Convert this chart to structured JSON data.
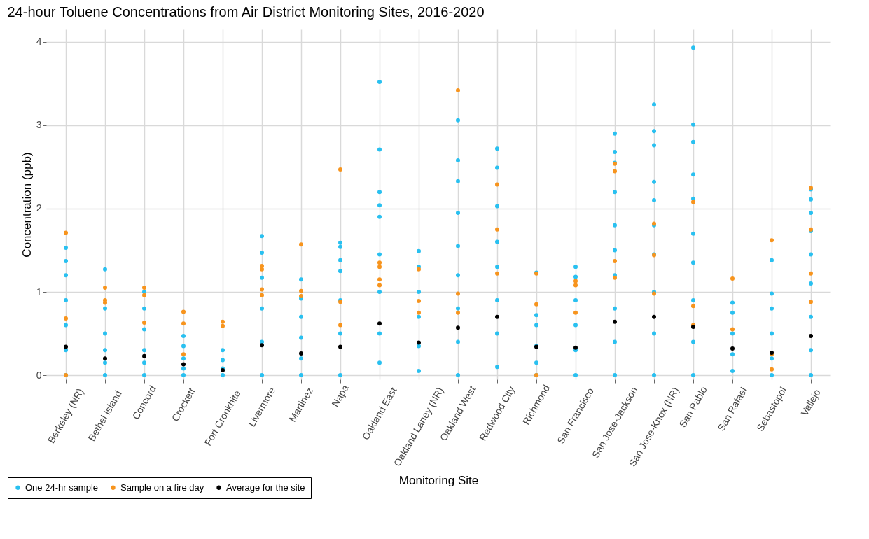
{
  "chart_data": {
    "type": "scatter",
    "title": "24-hour Toluene Concentrations from Air District Monitoring Sites, 2016-2020",
    "xlabel": "Monitoring Site",
    "ylabel": "Concentration (ppb)",
    "categories": [
      "Berkeley (NR)",
      "Bethel Island",
      "Concord",
      "Crockett",
      "Fort Cronkhite",
      "Livermore",
      "Martinez",
      "Napa",
      "Oakland East",
      "Oakland Laney (NR)",
      "Oakland West",
      "Redwood City",
      "Richmond",
      "San Francisco",
      "San Jose-Jackson",
      "San Jose-Knox (NR)",
      "San Pablo",
      "San Rafael",
      "Sebastopol",
      "Vallejo"
    ],
    "ylim": [
      -0.05,
      4.15
    ],
    "yticks": [
      0,
      1,
      2,
      3,
      4
    ],
    "grid": true,
    "legend": "bottom left",
    "marker": "circle",
    "series": [
      {
        "name": "One 24-hr sample",
        "color": "#29c0f0",
        "x": [
          "Berkeley (NR)",
          "Berkeley (NR)",
          "Berkeley (NR)",
          "Berkeley (NR)",
          "Berkeley (NR)",
          "Berkeley (NR)",
          "Berkeley (NR)",
          "Bethel Island",
          "Bethel Island",
          "Bethel Island",
          "Bethel Island",
          "Bethel Island",
          "Bethel Island",
          "Concord",
          "Concord",
          "Concord",
          "Concord",
          "Concord",
          "Concord",
          "Crockett",
          "Crockett",
          "Crockett",
          "Crockett",
          "Crockett",
          "Fort Cronkhite",
          "Fort Cronkhite",
          "Fort Cronkhite",
          "Fort Cronkhite",
          "Livermore",
          "Livermore",
          "Livermore",
          "Livermore",
          "Livermore",
          "Livermore",
          "Martinez",
          "Martinez",
          "Martinez",
          "Martinez",
          "Martinez",
          "Martinez",
          "Napa",
          "Napa",
          "Napa",
          "Napa",
          "Napa",
          "Napa",
          "Napa",
          "Oakland East",
          "Oakland East",
          "Oakland East",
          "Oakland East",
          "Oakland East",
          "Oakland East",
          "Oakland East",
          "Oakland East",
          "Oakland East",
          "Oakland Laney (NR)",
          "Oakland Laney (NR)",
          "Oakland Laney (NR)",
          "Oakland Laney (NR)",
          "Oakland Laney (NR)",
          "Oakland Laney (NR)",
          "Oakland West",
          "Oakland West",
          "Oakland West",
          "Oakland West",
          "Oakland West",
          "Oakland West",
          "Oakland West",
          "Oakland West",
          "Oakland West",
          "Redwood City",
          "Redwood City",
          "Redwood City",
          "Redwood City",
          "Redwood City",
          "Redwood City",
          "Redwood City",
          "Redwood City",
          "Richmond",
          "Richmond",
          "Richmond",
          "Richmond",
          "Richmond",
          "Richmond",
          "San Francisco",
          "San Francisco",
          "San Francisco",
          "San Francisco",
          "San Francisco",
          "San Francisco",
          "San Jose-Jackson",
          "San Jose-Jackson",
          "San Jose-Jackson",
          "San Jose-Jackson",
          "San Jose-Jackson",
          "San Jose-Jackson",
          "San Jose-Jackson",
          "San Jose-Jackson",
          "San Jose-Jackson",
          "San Jose-Jackson",
          "San Jose-Knox (NR)",
          "San Jose-Knox (NR)",
          "San Jose-Knox (NR)",
          "San Jose-Knox (NR)",
          "San Jose-Knox (NR)",
          "San Jose-Knox (NR)",
          "San Jose-Knox (NR)",
          "San Jose-Knox (NR)",
          "San Jose-Knox (NR)",
          "San Jose-Knox (NR)",
          "San Pablo",
          "San Pablo",
          "San Pablo",
          "San Pablo",
          "San Pablo",
          "San Pablo",
          "San Pablo",
          "San Pablo",
          "San Pablo",
          "San Pablo",
          "San Rafael",
          "San Rafael",
          "San Rafael",
          "San Rafael",
          "San Rafael",
          "Sebastopol",
          "Sebastopol",
          "Sebastopol",
          "Sebastopol",
          "Sebastopol",
          "Sebastopol",
          "Vallejo",
          "Vallejo",
          "Vallejo",
          "Vallejo",
          "Vallejo",
          "Vallejo",
          "Vallejo",
          "Vallejo",
          "Vallejo"
        ],
        "values": [
          1.53,
          1.37,
          1.2,
          0.9,
          0.6,
          0.3,
          0.0,
          1.27,
          0.8,
          0.5,
          0.3,
          0.15,
          0.0,
          1.0,
          0.8,
          0.55,
          0.3,
          0.15,
          0.0,
          0.47,
          0.35,
          0.2,
          0.08,
          0.0,
          0.3,
          0.18,
          0.08,
          0.0,
          1.67,
          1.47,
          1.17,
          0.8,
          0.4,
          0.0,
          1.15,
          0.92,
          0.7,
          0.45,
          0.2,
          0.0,
          1.59,
          1.54,
          1.38,
          1.25,
          0.9,
          0.5,
          0.0,
          3.52,
          2.71,
          2.2,
          2.04,
          1.9,
          1.45,
          1.0,
          0.5,
          0.15,
          1.49,
          1.3,
          1.0,
          0.7,
          0.35,
          0.05,
          3.06,
          2.58,
          2.33,
          1.95,
          1.55,
          1.2,
          0.8,
          0.4,
          0.0,
          2.72,
          2.49,
          2.03,
          1.6,
          1.3,
          0.9,
          0.5,
          0.1,
          1.23,
          0.72,
          0.6,
          0.35,
          0.15,
          0.0,
          1.3,
          1.18,
          0.9,
          0.6,
          0.3,
          0.0,
          2.9,
          2.68,
          2.55,
          2.2,
          1.8,
          1.5,
          1.2,
          0.8,
          0.4,
          0.0,
          3.25,
          2.93,
          2.76,
          2.32,
          2.1,
          1.8,
          1.45,
          1.0,
          0.5,
          0.0,
          3.93,
          3.01,
          2.8,
          2.41,
          2.12,
          1.7,
          1.35,
          0.9,
          0.4,
          0.0,
          0.87,
          0.75,
          0.5,
          0.25,
          0.05,
          1.38,
          0.98,
          0.8,
          0.5,
          0.2,
          0.0,
          2.23,
          2.11,
          1.95,
          1.73,
          1.45,
          1.1,
          0.7,
          0.3,
          0.0
        ]
      },
      {
        "name": "Sample on a fire day",
        "color": "#f7941d",
        "x": [
          "Berkeley (NR)",
          "Berkeley (NR)",
          "Berkeley (NR)",
          "Bethel Island",
          "Bethel Island",
          "Bethel Island",
          "Concord",
          "Concord",
          "Concord",
          "Crockett",
          "Crockett",
          "Crockett",
          "Fort Cronkhite",
          "Fort Cronkhite",
          "Livermore",
          "Livermore",
          "Livermore",
          "Livermore",
          "Martinez",
          "Martinez",
          "Martinez",
          "Napa",
          "Napa",
          "Napa",
          "Oakland East",
          "Oakland East",
          "Oakland East",
          "Oakland East",
          "Oakland Laney (NR)",
          "Oakland Laney (NR)",
          "Oakland Laney (NR)",
          "Oakland West",
          "Oakland West",
          "Oakland West",
          "Redwood City",
          "Redwood City",
          "Redwood City",
          "Richmond",
          "Richmond",
          "Richmond",
          "San Francisco",
          "San Francisco",
          "San Francisco",
          "San Jose-Jackson",
          "San Jose-Jackson",
          "San Jose-Jackson",
          "San Jose-Jackson",
          "San Jose-Knox (NR)",
          "San Jose-Knox (NR)",
          "San Jose-Knox (NR)",
          "San Pablo",
          "San Pablo",
          "San Pablo",
          "San Rafael",
          "San Rafael",
          "Sebastopol",
          "Sebastopol",
          "Sebastopol",
          "Vallejo",
          "Vallejo",
          "Vallejo",
          "Vallejo"
        ],
        "values": [
          1.71,
          0.68,
          0.0,
          1.05,
          0.9,
          0.87,
          1.05,
          0.96,
          0.63,
          0.76,
          0.62,
          0.25,
          0.64,
          0.59,
          1.31,
          1.27,
          1.03,
          0.96,
          1.57,
          1.01,
          0.95,
          2.47,
          0.88,
          0.6,
          1.35,
          1.3,
          1.15,
          1.08,
          1.27,
          0.89,
          0.75,
          3.42,
          0.98,
          0.75,
          2.29,
          1.75,
          1.22,
          1.22,
          0.85,
          0.0,
          1.13,
          1.08,
          0.75,
          2.54,
          2.45,
          1.37,
          1.17,
          1.82,
          1.44,
          0.98,
          2.08,
          0.83,
          0.6,
          1.16,
          0.55,
          1.62,
          0.25,
          0.07,
          2.25,
          1.75,
          1.22,
          0.88
        ]
      },
      {
        "name": "Average for the site",
        "color": "#000000",
        "values": [
          0.34,
          0.2,
          0.23,
          0.13,
          0.06,
          0.36,
          0.26,
          0.34,
          0.62,
          0.39,
          0.57,
          0.7,
          0.34,
          0.33,
          0.64,
          0.7,
          0.58,
          0.32,
          0.27,
          0.47
        ]
      }
    ]
  }
}
